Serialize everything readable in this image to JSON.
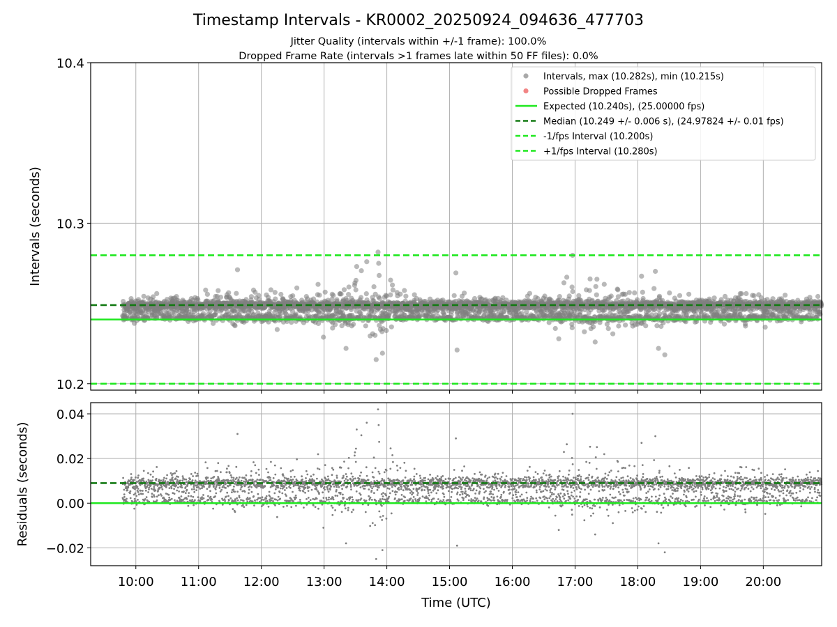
{
  "chart_data": [
    {
      "type": "scatter",
      "panel": "intervals",
      "title": "Timestamp Intervals - KR0002_20250924_094636_477703",
      "subtitle_1": "Jitter Quality (intervals within +/-1 frame): 100.0%",
      "subtitle_2": "Dropped Frame Rate (intervals >1 frames late within 50 FF files): 0.0%",
      "ylabel": "Intervals (seconds)",
      "xlabel": "",
      "xlim_hours": [
        9.28,
        20.93
      ],
      "ylim": [
        10.196,
        10.4
      ],
      "yticks": [
        10.2,
        10.3,
        10.4
      ],
      "ytick_labels": [
        "10.2",
        "10.3",
        "10.4"
      ],
      "grid": true,
      "legend_position": "upper right",
      "legend": [
        {
          "label": "Intervals, max (10.282s), min (10.215s)",
          "kind": "marker",
          "color": "#9a9a9a"
        },
        {
          "label": "Possible Dropped Frames",
          "kind": "marker",
          "color": "#f07070"
        },
        {
          "label": "Expected (10.240s), (25.00000 fps)",
          "kind": "solid",
          "color": "#1fe81f"
        },
        {
          "label": "Median (10.249 +/- 0.006 s), (24.97824 +/- 0.01 fps)",
          "kind": "dashed",
          "color": "#137a13"
        },
        {
          "label": "-1/fps Interval (10.200s)",
          "kind": "dashed",
          "color": "#1fe81f"
        },
        {
          "label": "+1/fps Interval (10.280s)",
          "kind": "dashed",
          "color": "#1fe81f"
        }
      ],
      "reference_lines": [
        {
          "name": "expected",
          "y": 10.24,
          "style": "solid",
          "color": "#1fe81f"
        },
        {
          "name": "median",
          "y": 10.249,
          "style": "dashed",
          "color": "#137a13"
        },
        {
          "name": "minus-1-fps",
          "y": 10.2,
          "style": "dashed",
          "color": "#1fe81f"
        },
        {
          "name": "plus-1-fps",
          "y": 10.28,
          "style": "dashed",
          "color": "#1fe81f"
        }
      ],
      "series_summary": {
        "name": "Intervals",
        "x_start_hours": 9.79,
        "x_end_hours": 20.93,
        "max": 10.282,
        "min": 10.215,
        "median": 10.249,
        "std": 0.006
      },
      "outliers": [
        {
          "x": 13.86,
          "y": 10.282
        },
        {
          "x": 16.96,
          "y": 10.28
        },
        {
          "x": 13.83,
          "y": 10.215
        },
        {
          "x": 13.93,
          "y": 10.219
        },
        {
          "x": 18.43,
          "y": 10.218
        },
        {
          "x": 13.68,
          "y": 10.276
        },
        {
          "x": 13.87,
          "y": 10.275
        },
        {
          "x": 11.62,
          "y": 10.271
        },
        {
          "x": 18.28,
          "y": 10.27
        },
        {
          "x": 18.06,
          "y": 10.267
        },
        {
          "x": 15.1,
          "y": 10.269
        },
        {
          "x": 13.52,
          "y": 10.273
        },
        {
          "x": 13.35,
          "y": 10.222
        },
        {
          "x": 15.12,
          "y": 10.221
        },
        {
          "x": 18.33,
          "y": 10.222
        },
        {
          "x": 12.99,
          "y": 10.229
        },
        {
          "x": 16.74,
          "y": 10.228
        },
        {
          "x": 17.32,
          "y": 10.226
        }
      ]
    },
    {
      "type": "scatter",
      "panel": "residuals",
      "title": "",
      "xlabel": "Time (UTC)",
      "ylabel": "Residuals (seconds)",
      "xlim_hours": [
        9.28,
        20.93
      ],
      "ylim": [
        -0.028,
        0.045
      ],
      "yticks": [
        -0.02,
        0.0,
        0.02,
        0.04
      ],
      "ytick_labels": [
        "−0.02",
        "0.00",
        "0.02",
        "0.04"
      ],
      "xticks_hours": [
        10,
        11,
        12,
        13,
        14,
        15,
        16,
        17,
        18,
        19,
        20
      ],
      "xtick_labels": [
        "10:00",
        "11:00",
        "12:00",
        "13:00",
        "14:00",
        "15:00",
        "16:00",
        "17:00",
        "18:00",
        "19:00",
        "20:00"
      ],
      "grid": true,
      "reference_lines": [
        {
          "name": "zero",
          "y": 0.0,
          "style": "solid",
          "color": "#1fe81f"
        },
        {
          "name": "median-offset",
          "y": 0.009,
          "style": "dashed",
          "color": "#137a13"
        }
      ],
      "series_summary": {
        "name": "Residuals",
        "x_start_hours": 9.79,
        "x_end_hours": 20.93,
        "max": 0.042,
        "min": -0.025
      }
    }
  ],
  "colors": {
    "points": "#808080",
    "expected": "#1fe81f",
    "median": "#137a13",
    "dropped": "#f07070",
    "grid": "#b0b0b0"
  }
}
